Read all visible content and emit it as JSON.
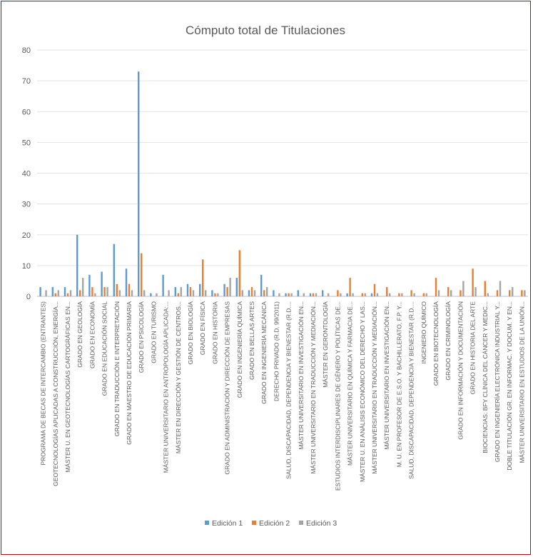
{
  "chart_data": {
    "type": "bar",
    "title": "Cómputo total de Titulaciones",
    "xlabel": "",
    "ylabel": "",
    "ylim": [
      0,
      80
    ],
    "yticks": [
      0,
      10,
      20,
      30,
      40,
      50,
      60,
      70,
      80
    ],
    "grid": true,
    "legend_position": "bottom",
    "colors": {
      "Edición 1": "#5b9bd5",
      "Edición 2": "#ed7d31",
      "Edición 3": "#a5a5a5"
    },
    "categories": [
      "PROGRAMA DE BECAS DE INTERCAMBIO (ENTRANTES)",
      "GEOTECNOLOGÍAS APLICADAS A CONSTRUCCIÓN, ENERGÍA...",
      "MÁSTER U. EN GEOTECNOLOGÍAS CARTOGRÁFICAS EN...",
      "GRADO EN GEOLOGÍA",
      "GRADO EN ECONOMÍA",
      "GRADO EN EDUCACIÓN SOCIAL",
      "GRADO EN TRADUCCIÓN E INTERPRETACIÓN",
      "GRADO EN MAESTRO DE EDUCACIÓN PRIMARIA",
      "GRADO EN PSICOLOGÍA",
      "GRADO EN TURISMO",
      "MÁSTER UNIVERSITARIO EN ANTROPOLOGÍA APLICADA:...",
      "MÁSTER EN DIRECCIÓN Y GESTIÓN DE CENTROS...",
      "GRADO EN BIOLOGÍA",
      "GRADO EN FÍSICA",
      "GRADO EN HISTORIA",
      "GRADO EN ADMINISTRACIÓN Y DIRECCIÓN DE EMPRESAS",
      "GRADO EN INGENIERÍA QUÍMICA",
      "GRADO EN BELLAS ARTES",
      "GRADO EN INGENIERÍA MECÁNICA",
      "DERECHO PRIVADO (R.D. 99/2011)",
      "SALUD, DISCAPACIDAD, DEPENDENCIA Y BIENESTAR (R.D....",
      "MÁSTER UNIVERSITARIO EN INVESTIGACIÓN EN...",
      "MÁSTER UNIVERSITARIO EN TRADUCCIÓN Y MEDIACIÓN...",
      "MÁSTER EN GERONTOLOGÍA",
      "ESTUDIOS INTERDISCIPLINARES DE GÉNERO Y POLÍTICAS DE...",
      "MÁSTER UNIVERSITARIO EN QUÍMICA Y FARMACIA DE...",
      "MÁSTER U. EN ANÁLISIS ECONÓMICO DEL DERECHO Y LAS...",
      "MÁSTER UNIVERSITARIO EN TRADUCCIÓN Y MEDIACIÓN...",
      "MÁSTER UNIVERSITARIO EN INVESTIGACIÓN EN...",
      "M. U. EN PROFESOR DE E.S.O. Y BACHILLERATO, F.P. Y...",
      "SALUD, DISCAPACIDAD, DEPENDENCIA Y BIENESTAR (R.D....",
      "INGENIERO QUÍMICO",
      "GRADO EN BIOTECNOLOGÍA",
      "GRADO EN CRIMINOLOGÍA",
      "GRADO EN INFORMACIÓN Y DOCUMENTACIÓN",
      "GRADO EN HISTORIA DEL ARTE",
      "BIOCIENCIAS: BFY CLÍNICA DEL CÁNCER Y MEDIC...",
      "GRADO EN INGENIERÍA ELECTRÓNICA INDUSTRIAL Y...",
      "DOBLE TITULACIÓN GR. EN INFORMAC. Y DOCUM. Y EN...",
      "MÁSTER UNIVERSITARIO EN ESTUDIOS DE LA UNIÓN..."
    ],
    "series": [
      {
        "name": "Edición 1",
        "values": [
          3,
          3,
          3,
          20,
          7,
          8,
          17,
          9,
          73,
          1,
          7,
          3,
          4,
          4,
          2,
          4,
          6,
          2,
          7,
          2,
          1,
          2,
          1,
          2,
          0,
          1,
          0,
          1,
          0,
          0,
          0,
          0,
          0,
          0,
          0,
          0,
          0,
          0,
          0,
          0
        ]
      },
      {
        "name": "Edición 2",
        "values": [
          0,
          1,
          1,
          2,
          3,
          3,
          4,
          4,
          14,
          0,
          0,
          1,
          3,
          12,
          1,
          3,
          15,
          3,
          2,
          0,
          1,
          0,
          1,
          0,
          2,
          6,
          1,
          4,
          3,
          1,
          2,
          1,
          6,
          3,
          2,
          9,
          5,
          2,
          2,
          2
        ]
      },
      {
        "name": "Edición 3",
        "values": [
          2,
          2,
          2,
          6,
          1,
          3,
          2,
          2,
          2,
          1,
          2,
          3,
          2,
          2,
          1,
          6,
          2,
          2,
          3,
          1,
          1,
          1,
          1,
          1,
          1,
          1,
          1,
          1,
          1,
          1,
          1,
          1,
          2,
          2,
          5,
          3,
          1,
          5,
          3,
          2
        ]
      }
    ]
  }
}
